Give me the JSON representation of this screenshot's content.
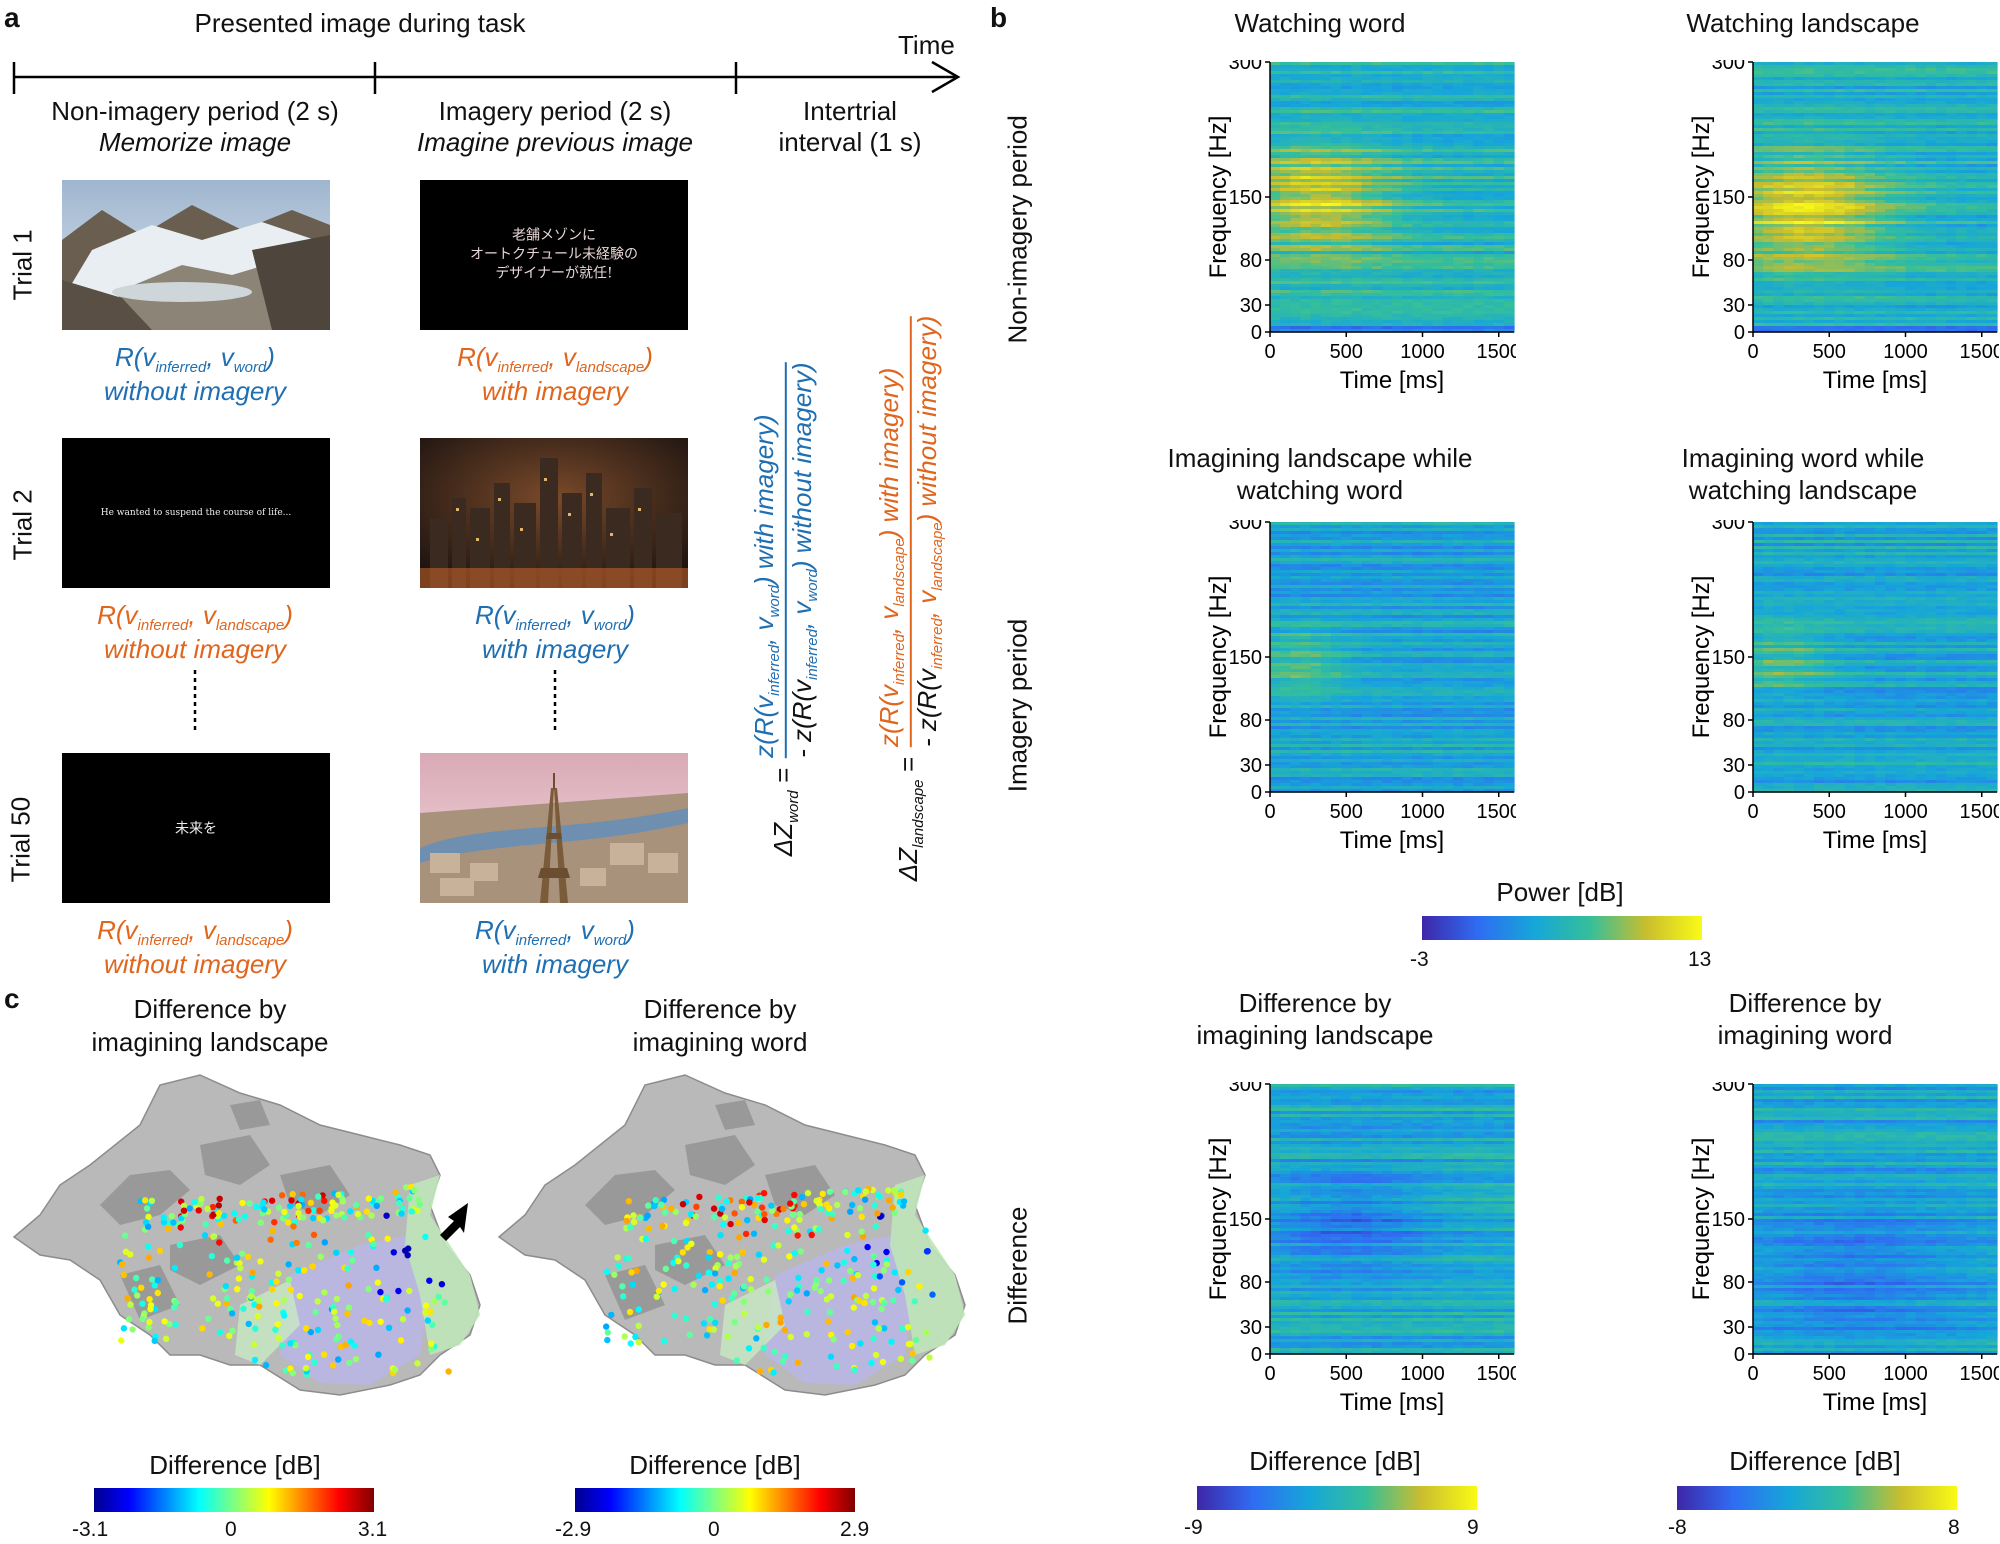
{
  "panel_a": {
    "letter": "a",
    "title": "Presented image during task",
    "time_label": "Time",
    "periods": [
      {
        "line1": "Non-imagery period (2 s)",
        "line2": "Memorize image"
      },
      {
        "line1": "Imagery period (2 s)",
        "line2": "Imagine previous image"
      },
      {
        "line1": "Intertrial",
        "line2": "interval (1 s)"
      }
    ],
    "trials": [
      {
        "label": "Trial 1",
        "left_image": "glacier landscape",
        "right_text_line1": "老舗メゾンに",
        "right_text_line2": "オートクチュール未経験の",
        "right_text_line3": "デザイナーが就任!",
        "left_R": "R(vinferred, vword)",
        "left_R_main": "R(v",
        "left_R_sub1": "inferred",
        "left_R_mid": ", v",
        "left_R_sub2": "word",
        "left_R_end": ")",
        "left_mode": "without imagery",
        "right_R_main": "R(v",
        "right_R_sub1": "inferred",
        "right_R_mid": ", v",
        "right_R_sub2": "landscape",
        "right_R_end": ")",
        "right_mode": "with imagery"
      },
      {
        "label": "Trial 2",
        "left_text": "He wanted to suspend the course of life...",
        "right_image": "city night landscape",
        "left_R_main": "R(v",
        "left_R_sub1": "inferred",
        "left_R_mid": ", v",
        "left_R_sub2": "landscape",
        "left_R_end": ")",
        "left_mode": "without imagery",
        "right_R_main": "R(v",
        "right_R_sub1": "inferred",
        "right_R_mid": ", v",
        "right_R_sub2": "word",
        "right_R_end": ")",
        "right_mode": "with imagery"
      },
      {
        "label": "Trial 50",
        "left_text": "未来を",
        "right_image": "eiffel tower landscape",
        "left_R_main": "R(v",
        "left_R_sub1": "inferred",
        "left_R_mid": ", v",
        "left_R_sub2": "landscape",
        "left_R_end": ")",
        "left_mode": "without imagery",
        "right_R_main": "R(v",
        "right_R_sub1": "inferred",
        "right_R_mid": ", v",
        "right_R_sub2": "word",
        "right_R_end": ")",
        "right_mode": "with imagery"
      }
    ],
    "formula_word": {
      "lhs": "ΔZ",
      "lhs_sub": "word",
      "eq": "=",
      "num_a": "z(R(v",
      "num_sub1": "inferred",
      "num_b": ", v",
      "num_sub2": "word",
      "num_c": ") with imagery)",
      "den_a": "- z(R(v",
      "den_sub1": "inferred",
      "den_b": ", v",
      "den_sub2": "word",
      "den_c": ") without imagery)"
    },
    "formula_landscape": {
      "lhs": "ΔZ",
      "lhs_sub": "landscape",
      "eq": "=",
      "num_a": "z(R(v",
      "num_sub1": "inferred",
      "num_b": ", v",
      "num_sub2": "landscape",
      "num_c": ") with imagery)",
      "den_a": "- z(R(v",
      "den_sub1": "inferred",
      "den_b": ", v",
      "den_sub2": "landscape",
      "den_c": ") without imagery)"
    }
  },
  "panel_b": {
    "letter": "b",
    "row_labels": [
      "Non-imagery period",
      "Imagery period",
      "Difference"
    ],
    "plot_titles": [
      [
        "Watching word"
      ],
      [
        "Watching landscape"
      ],
      [
        "Imagining landscape while",
        "watching word"
      ],
      [
        "Imagining word while",
        "watching landscape"
      ],
      [
        "Difference by",
        "imagining landscape"
      ],
      [
        "Difference by",
        "imagining word"
      ]
    ],
    "xlabel": "Time [ms]",
    "ylabel": "Frequency [Hz]",
    "xticks": [
      "0",
      "500",
      "1000",
      "1500"
    ],
    "yticks": [
      "300",
      "150",
      "80",
      "30",
      "0"
    ],
    "power_colorbar": {
      "title": "Power [dB]",
      "min": "-3",
      "max": "13"
    },
    "diff_colorbars": [
      {
        "title": "Difference [dB]",
        "min": "-9",
        "max": "9"
      },
      {
        "title": "Difference [dB]",
        "min": "-8",
        "max": "8"
      }
    ]
  },
  "panel_c": {
    "letter": "c",
    "maps": [
      {
        "title1": "Difference by",
        "title2": "imagining landscape",
        "cbar_title": "Difference [dB]",
        "min": "-3.1",
        "mid": "0",
        "max": "3.1"
      },
      {
        "title1": "Difference by",
        "title2": "imagining word",
        "cbar_title": "Difference [dB]",
        "min": "-2.9",
        "mid": "0",
        "max": "2.9"
      }
    ]
  },
  "chart_data": [
    {
      "type": "heatmap",
      "title": "Watching word",
      "xlabel": "Time [ms]",
      "ylabel": "Frequency [Hz]",
      "xlim": [
        0,
        1600
      ],
      "ylim": [
        0,
        300
      ],
      "xticks": [
        0,
        500,
        1000,
        1500
      ],
      "yticks": [
        0,
        30,
        80,
        150,
        300
      ],
      "colorbar": "Power [dB]",
      "clim": [
        -3,
        13
      ]
    },
    {
      "type": "heatmap",
      "title": "Watching landscape",
      "xlabel": "Time [ms]",
      "ylabel": "Frequency [Hz]",
      "xlim": [
        0,
        1600
      ],
      "ylim": [
        0,
        300
      ],
      "xticks": [
        0,
        500,
        1000,
        1500
      ],
      "yticks": [
        0,
        30,
        80,
        150,
        300
      ],
      "colorbar": "Power [dB]",
      "clim": [
        -3,
        13
      ]
    },
    {
      "type": "heatmap",
      "title": "Imagining landscape while watching word",
      "xlabel": "Time [ms]",
      "ylabel": "Frequency [Hz]",
      "xlim": [
        0,
        1600
      ],
      "ylim": [
        0,
        300
      ],
      "colorbar": "Power [dB]",
      "clim": [
        -3,
        13
      ]
    },
    {
      "type": "heatmap",
      "title": "Imagining word while watching landscape",
      "xlabel": "Time [ms]",
      "ylabel": "Frequency [Hz]",
      "xlim": [
        0,
        1600
      ],
      "ylim": [
        0,
        300
      ],
      "colorbar": "Power [dB]",
      "clim": [
        -3,
        13
      ]
    },
    {
      "type": "heatmap",
      "title": "Difference by imagining landscape",
      "xlabel": "Time [ms]",
      "ylabel": "Frequency [Hz]",
      "xlim": [
        0,
        1600
      ],
      "ylim": [
        0,
        300
      ],
      "colorbar": "Difference [dB]",
      "clim": [
        -9,
        9
      ]
    },
    {
      "type": "heatmap",
      "title": "Difference by imagining word",
      "xlabel": "Time [ms]",
      "ylabel": "Frequency [Hz]",
      "xlim": [
        0,
        1600
      ],
      "ylim": [
        0,
        300
      ],
      "colorbar": "Difference [dB]",
      "clim": [
        -8,
        8
      ]
    }
  ],
  "colors": {
    "blue_text": "#1f6fb2",
    "orange_text": "#e0661e"
  }
}
